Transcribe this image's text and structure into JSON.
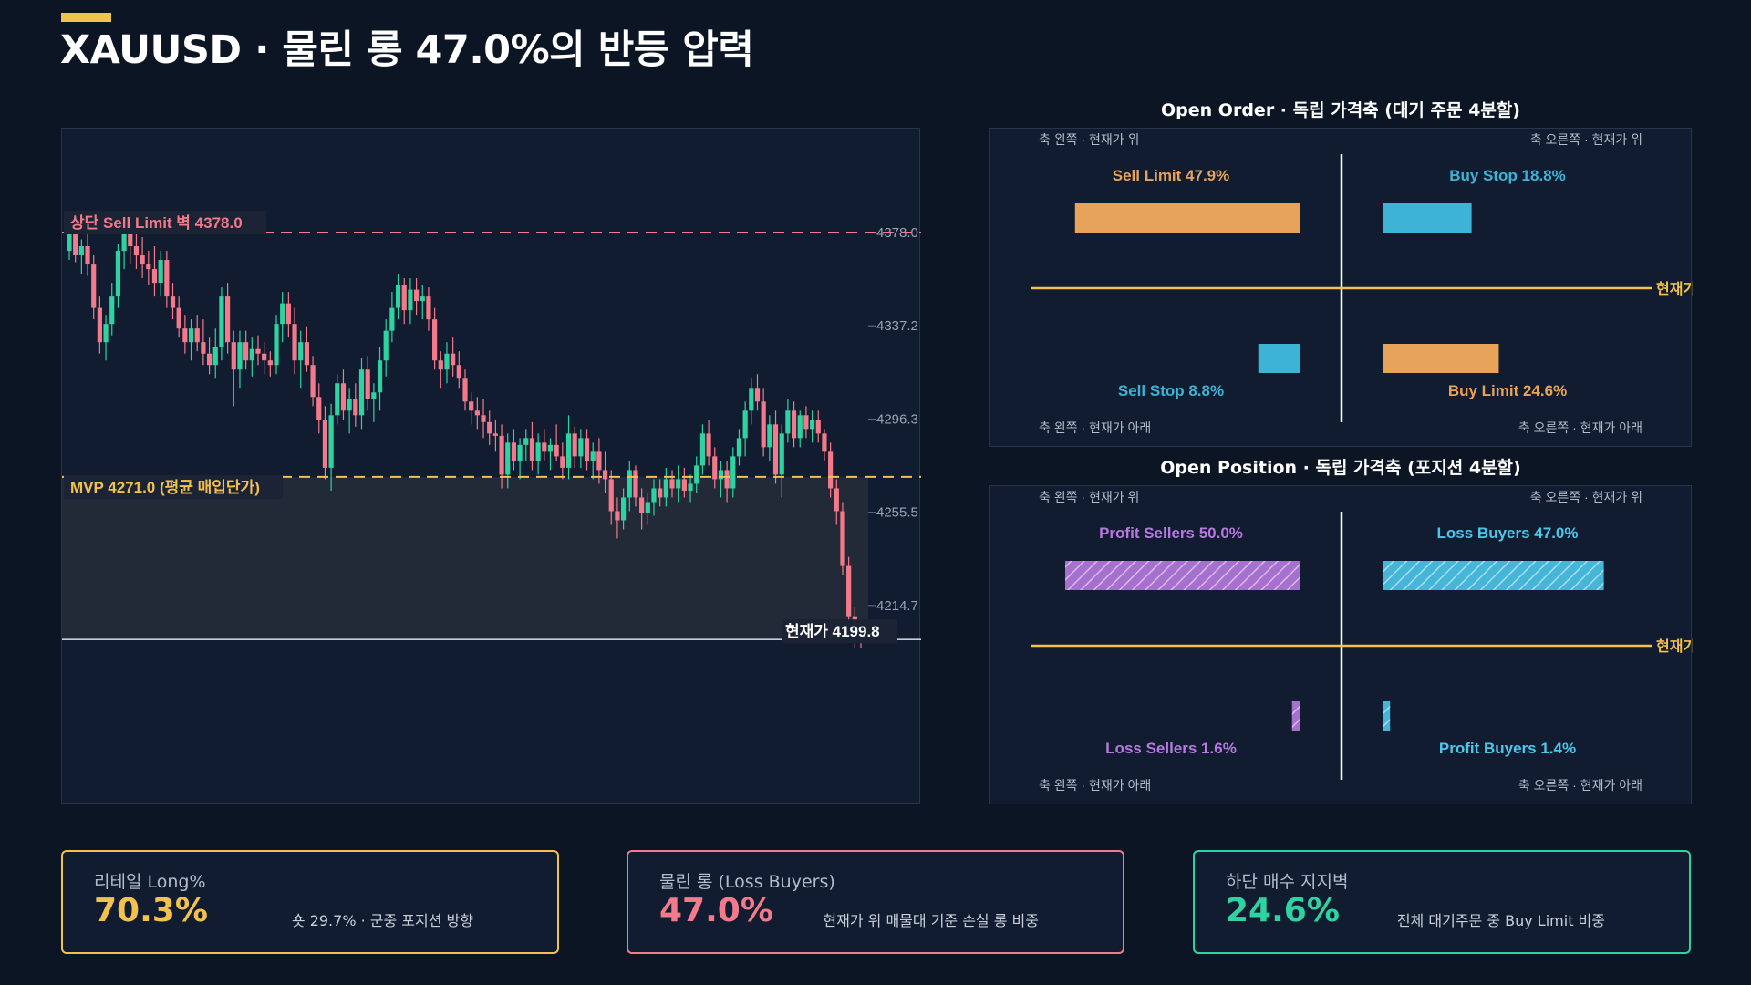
{
  "title": "XAUUSD · 물린 롱 47.0%의 반등 압력",
  "colors": {
    "background": "#0c1524",
    "panel": "#111c30",
    "up": "#2fd3a2",
    "down": "#f27a8a",
    "resistance": "#f27a8a",
    "mvp": "#f2c14e",
    "current": "#c8ced8",
    "orange": "#e8a35a",
    "blue": "#3db4d6",
    "purple": "#b679e0",
    "cyan": "#4cc7ea",
    "green": "#2fd3a2"
  },
  "chart_data": [
    {
      "type": "candlestick",
      "title": "",
      "yticks": [
        "4378.0",
        "4337.2",
        "4296.3",
        "4255.5",
        "4214.7"
      ],
      "ylim": [
        4178,
        4395
      ],
      "lines": {
        "resistance": {
          "label": "상단 Sell Limit 벽 4378.0",
          "value": 4378.0
        },
        "mvp": {
          "label": "MVP 4271.0 (평균 매입단가)",
          "value": 4271.0
        },
        "current": {
          "label": "현재가 4199.8",
          "value": 4199.8
        }
      },
      "ohlc": [
        [
          4370,
          4385,
          4366,
          4380
        ],
        [
          4380,
          4384,
          4365,
          4368
        ],
        [
          4368,
          4375,
          4360,
          4372
        ],
        [
          4372,
          4378,
          4359,
          4364
        ],
        [
          4364,
          4368,
          4340,
          4345
        ],
        [
          4345,
          4350,
          4325,
          4330
        ],
        [
          4330,
          4342,
          4322,
          4338
        ],
        [
          4338,
          4356,
          4333,
          4350
        ],
        [
          4350,
          4373,
          4345,
          4370
        ],
        [
          4370,
          4386,
          4362,
          4378
        ],
        [
          4378,
          4383,
          4364,
          4372
        ],
        [
          4372,
          4378,
          4362,
          4368
        ],
        [
          4368,
          4376,
          4358,
          4364
        ],
        [
          4364,
          4370,
          4355,
          4362
        ],
        [
          4362,
          4372,
          4350,
          4356
        ],
        [
          4356,
          4370,
          4350,
          4366
        ],
        [
          4366,
          4370,
          4345,
          4350
        ],
        [
          4350,
          4356,
          4340,
          4345
        ],
        [
          4345,
          4350,
          4332,
          4336
        ],
        [
          4336,
          4342,
          4325,
          4330
        ],
        [
          4330,
          4340,
          4322,
          4336
        ],
        [
          4336,
          4342,
          4326,
          4330
        ],
        [
          4330,
          4340,
          4320,
          4325
        ],
        [
          4325,
          4332,
          4316,
          4320
        ],
        [
          4320,
          4336,
          4314,
          4328
        ],
        [
          4328,
          4354,
          4322,
          4350
        ],
        [
          4350,
          4356,
          4325,
          4330
        ],
        [
          4330,
          4335,
          4302,
          4318
        ],
        [
          4318,
          4335,
          4310,
          4330
        ],
        [
          4330,
          4335,
          4318,
          4322
        ],
        [
          4322,
          4332,
          4315,
          4327
        ],
        [
          4327,
          4333,
          4320,
          4325
        ],
        [
          4325,
          4330,
          4316,
          4322
        ],
        [
          4322,
          4326,
          4315,
          4320
        ],
        [
          4320,
          4342,
          4316,
          4338
        ],
        [
          4338,
          4352,
          4330,
          4347
        ],
        [
          4347,
          4352,
          4332,
          4338
        ],
        [
          4338,
          4345,
          4316,
          4322
        ],
        [
          4322,
          4335,
          4310,
          4330
        ],
        [
          4330,
          4337,
          4317,
          4320
        ],
        [
          4320,
          4324,
          4302,
          4306
        ],
        [
          4306,
          4312,
          4290,
          4296
        ],
        [
          4296,
          4302,
          4270,
          4275
        ],
        [
          4275,
          4303,
          4265,
          4298
        ],
        [
          4298,
          4316,
          4294,
          4312
        ],
        [
          4312,
          4318,
          4296,
          4300
        ],
        [
          4300,
          4310,
          4290,
          4305
        ],
        [
          4305,
          4312,
          4293,
          4298
        ],
        [
          4298,
          4323,
          4292,
          4318
        ],
        [
          4318,
          4324,
          4300,
          4305
        ],
        [
          4305,
          4312,
          4295,
          4308
        ],
        [
          4308,
          4328,
          4300,
          4322
        ],
        [
          4322,
          4340,
          4315,
          4335
        ],
        [
          4335,
          4352,
          4330,
          4345
        ],
        [
          4345,
          4360,
          4340,
          4355
        ],
        [
          4355,
          4358,
          4338,
          4344
        ],
        [
          4344,
          4358,
          4338,
          4353
        ],
        [
          4353,
          4358,
          4342,
          4348
        ],
        [
          4348,
          4355,
          4340,
          4350
        ],
        [
          4350,
          4354,
          4335,
          4340
        ],
        [
          4340,
          4345,
          4318,
          4322
        ],
        [
          4322,
          4326,
          4310,
          4318
        ],
        [
          4318,
          4330,
          4312,
          4325
        ],
        [
          4325,
          4332,
          4315,
          4320
        ],
        [
          4320,
          4326,
          4310,
          4314
        ],
        [
          4314,
          4318,
          4300,
          4304
        ],
        [
          4304,
          4308,
          4294,
          4300
        ],
        [
          4300,
          4306,
          4292,
          4298
        ],
        [
          4298,
          4305,
          4288,
          4295
        ],
        [
          4295,
          4300,
          4285,
          4290
        ],
        [
          4290,
          4296,
          4282,
          4289
        ],
        [
          4289,
          4294,
          4266,
          4272
        ],
        [
          4272,
          4290,
          4266,
          4286
        ],
        [
          4286,
          4292,
          4274,
          4278
        ],
        [
          4278,
          4288,
          4270,
          4285
        ],
        [
          4285,
          4292,
          4278,
          4288
        ],
        [
          4288,
          4295,
          4274,
          4278
        ],
        [
          4278,
          4290,
          4272,
          4286
        ],
        [
          4286,
          4292,
          4278,
          4282
        ],
        [
          4282,
          4288,
          4274,
          4285
        ],
        [
          4285,
          4294,
          4278,
          4280
        ],
        [
          4280,
          4286,
          4270,
          4275
        ],
        [
          4275,
          4298,
          4270,
          4290
        ],
        [
          4290,
          4293,
          4275,
          4280
        ],
        [
          4280,
          4292,
          4275,
          4288
        ],
        [
          4288,
          4292,
          4274,
          4278
        ],
        [
          4278,
          4286,
          4270,
          4282
        ],
        [
          4282,
          4288,
          4268,
          4274
        ],
        [
          4274,
          4282,
          4264,
          4270
        ],
        [
          4270,
          4274,
          4250,
          4256
        ],
        [
          4256,
          4262,
          4244,
          4252
        ],
        [
          4252,
          4266,
          4248,
          4262
        ],
        [
          4262,
          4278,
          4256,
          4274
        ],
        [
          4274,
          4276,
          4258,
          4262
        ],
        [
          4262,
          4266,
          4248,
          4255
        ],
        [
          4255,
          4264,
          4250,
          4260
        ],
        [
          4260,
          4270,
          4254,
          4266
        ],
        [
          4266,
          4270,
          4258,
          4262
        ],
        [
          4262,
          4275,
          4258,
          4270
        ],
        [
          4270,
          4274,
          4262,
          4266
        ],
        [
          4266,
          4276,
          4260,
          4270
        ],
        [
          4270,
          4275,
          4262,
          4265
        ],
        [
          4265,
          4272,
          4260,
          4268
        ],
        [
          4268,
          4280,
          4264,
          4276
        ],
        [
          4276,
          4294,
          4272,
          4290
        ],
        [
          4290,
          4296,
          4276,
          4280
        ],
        [
          4280,
          4284,
          4266,
          4270
        ],
        [
          4270,
          4278,
          4262,
          4274
        ],
        [
          4274,
          4278,
          4260,
          4266
        ],
        [
          4266,
          4284,
          4262,
          4280
        ],
        [
          4280,
          4292,
          4276,
          4288
        ],
        [
          4288,
          4304,
          4280,
          4300
        ],
        [
          4300,
          4314,
          4294,
          4310
        ],
        [
          4310,
          4316,
          4300,
          4304
        ],
        [
          4304,
          4310,
          4280,
          4284
        ],
        [
          4284,
          4298,
          4278,
          4294
        ],
        [
          4294,
          4300,
          4268,
          4272
        ],
        [
          4272,
          4294,
          4262,
          4290
        ],
        [
          4290,
          4305,
          4286,
          4300
        ],
        [
          4300,
          4304,
          4284,
          4288
        ],
        [
          4288,
          4300,
          4284,
          4298
        ],
        [
          4298,
          4302,
          4288,
          4292
        ],
        [
          4292,
          4300,
          4286,
          4296
        ],
        [
          4296,
          4300,
          4286,
          4290
        ],
        [
          4290,
          4292,
          4278,
          4282
        ],
        [
          4282,
          4286,
          4262,
          4266
        ],
        [
          4266,
          4270,
          4250,
          4256
        ],
        [
          4256,
          4260,
          4228,
          4232
        ],
        [
          4232,
          4236,
          4205,
          4210
        ],
        [
          4210,
          4214,
          4196,
          4200
        ],
        [
          4200,
          4204,
          4196,
          4199.8
        ]
      ]
    },
    {
      "type": "bar",
      "title": "Open Order · 독립 가격축 (대기 주문 4분할)",
      "scale_max": 50,
      "corner_labels": [
        "축 왼쪽 · 현재가 위",
        "축 오른쪽 · 현재가 위",
        "축 왼쪽 · 현재가 아래",
        "축 오른쪽 · 현재가 아래"
      ],
      "center_label": "현재가",
      "series": [
        {
          "name": "Sell Limit",
          "label": "Sell Limit 47.9%",
          "value": 47.9,
          "quadrant": "top-left",
          "color": "#e8a35a",
          "pattern": "solid"
        },
        {
          "name": "Buy Stop",
          "label": "Buy Stop 18.8%",
          "value": 18.8,
          "quadrant": "top-right",
          "color": "#3db4d6",
          "pattern": "solid"
        },
        {
          "name": "Sell Stop",
          "label": "Sell Stop 8.8%",
          "value": 8.8,
          "quadrant": "bottom-left",
          "color": "#3db4d6",
          "pattern": "solid"
        },
        {
          "name": "Buy Limit",
          "label": "Buy Limit 24.6%",
          "value": 24.6,
          "quadrant": "bottom-right",
          "color": "#e8a35a",
          "pattern": "solid"
        }
      ]
    },
    {
      "type": "bar",
      "title": "Open Position · 독립 가격축 (포지션 4분할)",
      "scale_max": 50,
      "corner_labels": [
        "축 왼쪽 · 현재가 위",
        "축 오른쪽 · 현재가 위",
        "축 왼쪽 · 현재가 아래",
        "축 오른쪽 · 현재가 아래"
      ],
      "center_label": "현재가",
      "series": [
        {
          "name": "Profit Sellers",
          "label": "Profit Sellers 50.0%",
          "value": 50.0,
          "quadrant": "top-left",
          "color": "#b679e0",
          "pattern": "hatched"
        },
        {
          "name": "Loss Buyers",
          "label": "Loss Buyers 47.0%",
          "value": 47.0,
          "quadrant": "top-right",
          "color": "#4cc7ea",
          "pattern": "hatched"
        },
        {
          "name": "Loss Sellers",
          "label": "Loss Sellers 1.6%",
          "value": 1.6,
          "quadrant": "bottom-left",
          "color": "#b679e0",
          "pattern": "hatched"
        },
        {
          "name": "Profit Buyers",
          "label": "Profit Buyers 1.4%",
          "value": 1.4,
          "quadrant": "bottom-right",
          "color": "#4cc7ea",
          "pattern": "hatched"
        }
      ]
    }
  ],
  "cards": [
    {
      "label": "리테일 Long%",
      "value": "70.3%",
      "note": "숏 29.7% · 군중 포지션 방향",
      "color": "#f2c14e"
    },
    {
      "label": "물린 롱 (Loss Buyers)",
      "value": "47.0%",
      "note": "현재가 위 매물대 기준 손실 롱 비중",
      "color": "#f27a8a"
    },
    {
      "label": "하단 매수 지지벽",
      "value": "24.6%",
      "note": "전체 대기주문 중 Buy Limit 비중",
      "color": "#2fd3a2"
    }
  ]
}
